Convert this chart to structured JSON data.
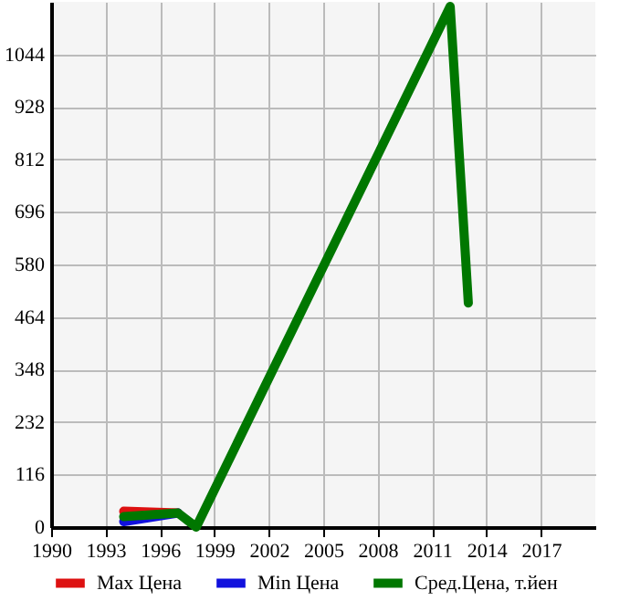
{
  "chart_data": {
    "type": "line",
    "xlim": [
      1990,
      2020
    ],
    "xticks": [
      1990,
      1993,
      1996,
      1999,
      2002,
      2005,
      2008,
      2011,
      2014,
      2017
    ],
    "ylim": [
      0,
      1160
    ],
    "yticks": [
      0,
      116,
      232,
      348,
      464,
      580,
      696,
      812,
      928,
      1044
    ],
    "grid": true,
    "legend": "bottom",
    "series": [
      {
        "name": "Max Цена",
        "color": "#dd1111",
        "x": [
          1994,
          1997
        ],
        "values": [
          35,
          31
        ]
      },
      {
        "name": "Min Цена",
        "color": "#1111dd",
        "x": [
          1994,
          1997
        ],
        "values": [
          12,
          31
        ]
      },
      {
        "name": "Сред.Цена, т.йен",
        "color": "#007700",
        "x": [
          1994,
          1997,
          1998,
          2012,
          2013
        ],
        "values": [
          23,
          31,
          0,
          1150,
          495
        ]
      }
    ]
  }
}
